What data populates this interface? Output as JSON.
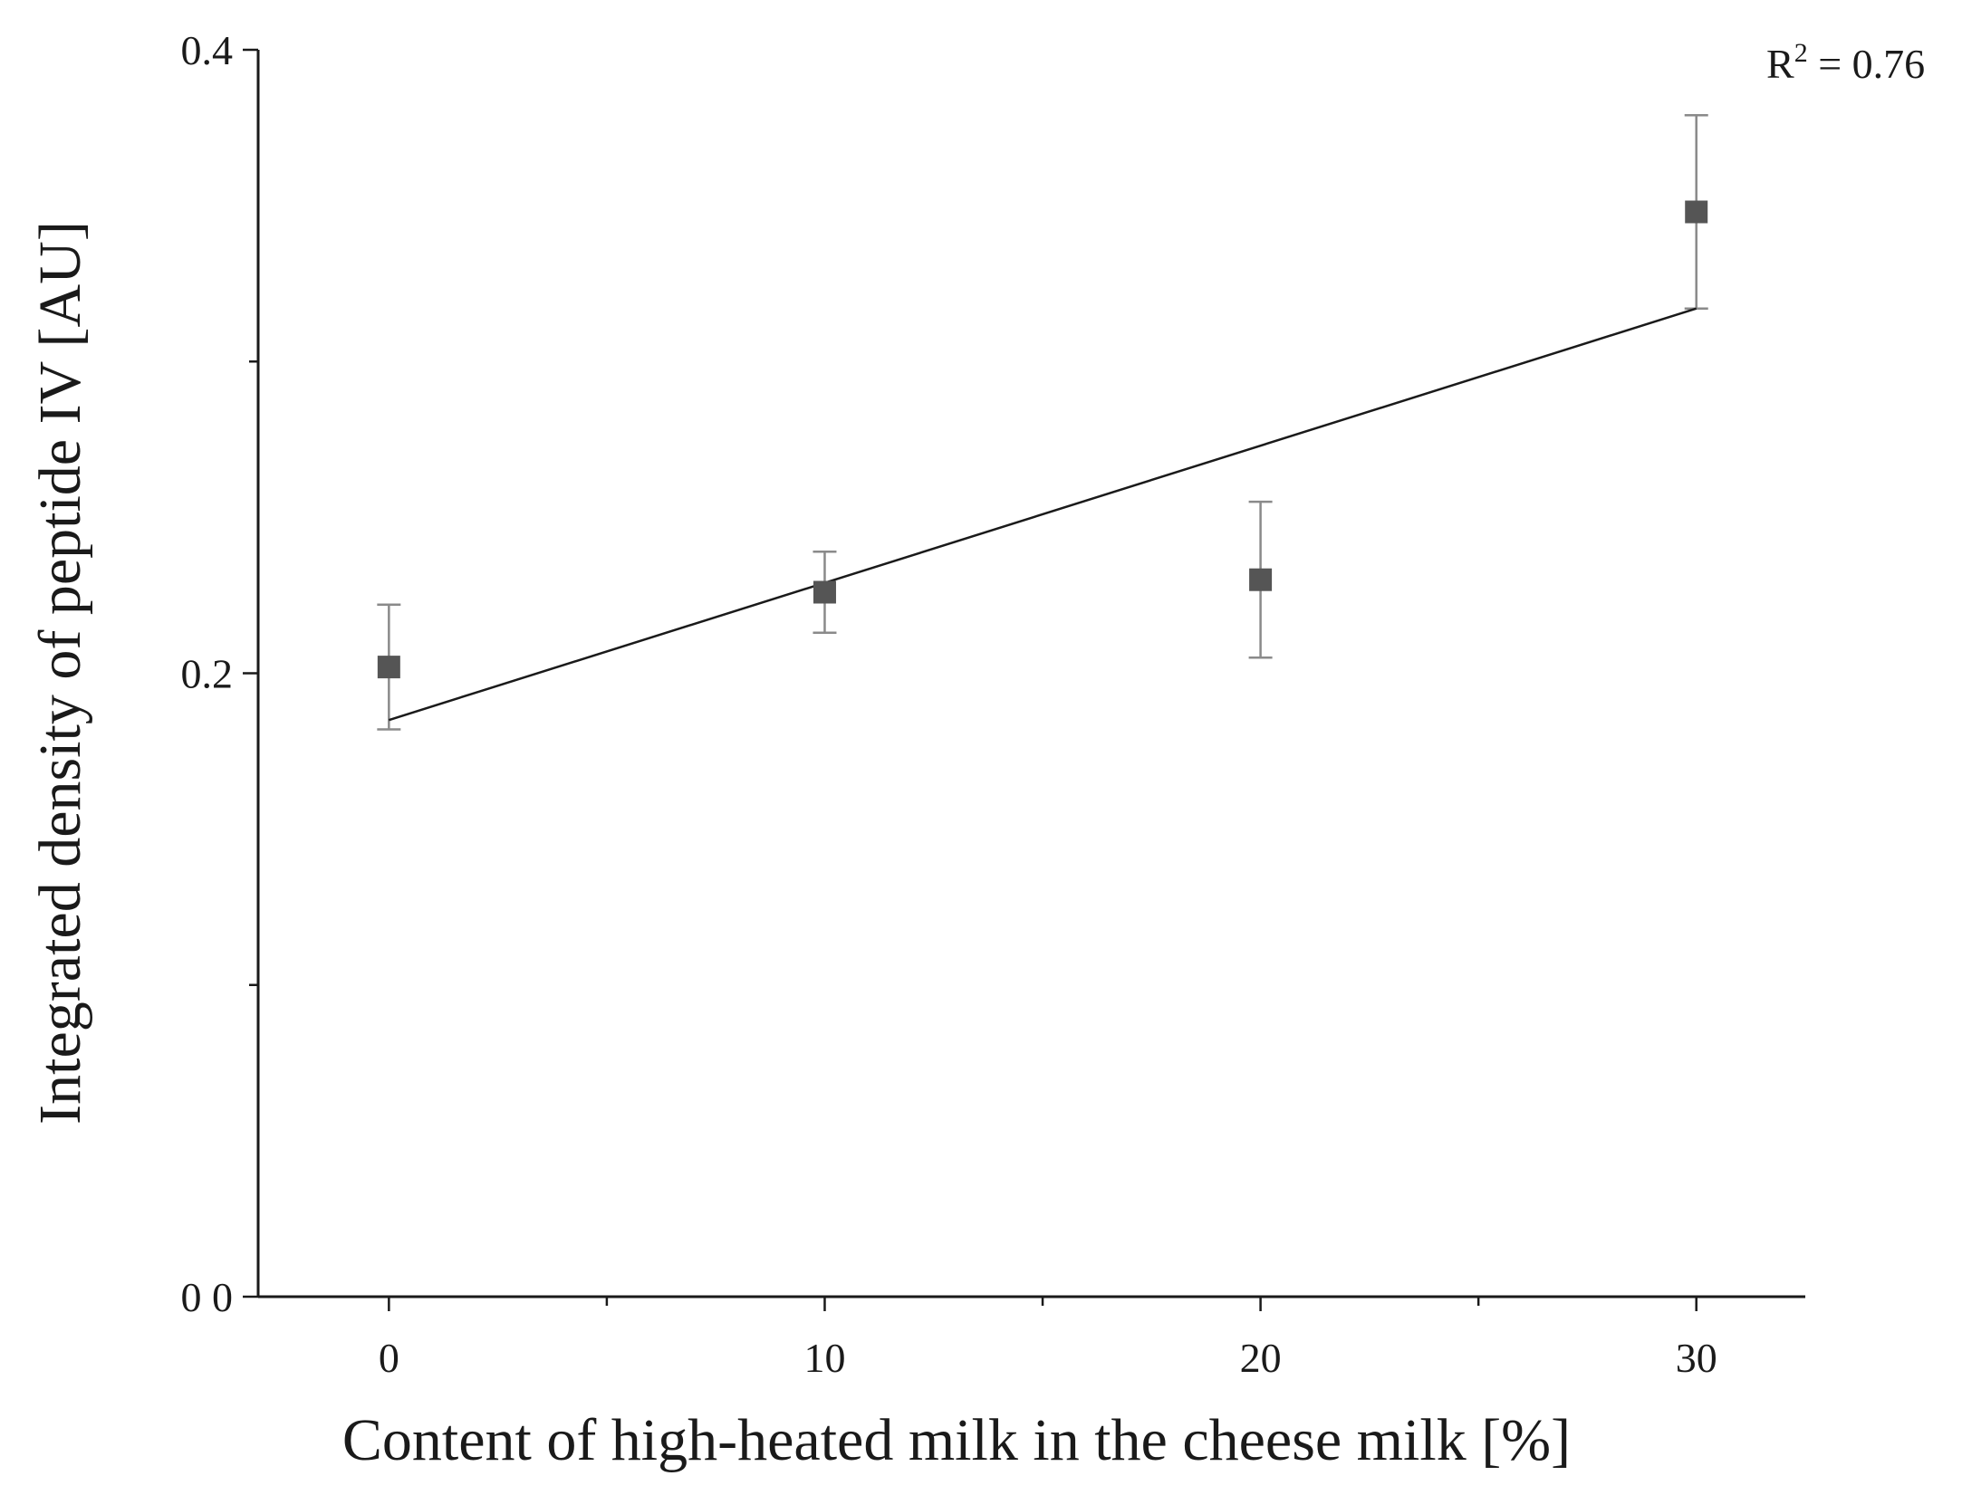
{
  "chart_data": {
    "type": "scatter",
    "xlabel": "Content of high-heated milk in the cheese milk [%]",
    "ylabel": "Integrated density of peptide IV [AU]",
    "xlim": [
      -3,
      32.5
    ],
    "ylim": [
      0,
      0.4
    ],
    "x_ticks": [
      0,
      10,
      20,
      30
    ],
    "x_minor_ticks": [
      5,
      15,
      25
    ],
    "x_tick_labels": [
      "0",
      "10",
      "20",
      "30"
    ],
    "y_ticks": [
      0,
      0.2,
      0.4
    ],
    "y_minor_ticks": [
      0.1,
      0.3
    ],
    "y_tick_labels": [
      "0 0",
      "0.2",
      "0.4"
    ],
    "points": [
      {
        "x": 0,
        "y": 0.202,
        "err_low": 0.182,
        "err_high": 0.222
      },
      {
        "x": 10,
        "y": 0.226,
        "err_low": 0.213,
        "err_high": 0.239
      },
      {
        "x": 20,
        "y": 0.23,
        "err_low": 0.205,
        "err_high": 0.255
      },
      {
        "x": 30,
        "y": 0.348,
        "err_low": 0.317,
        "err_high": 0.379
      }
    ],
    "fit_line": {
      "x": [
        0,
        30
      ],
      "y": [
        0.185,
        0.317
      ]
    },
    "annotation": {
      "base": "R",
      "sup": "2",
      "rest": " = 0.76"
    },
    "marker_color": "#555555",
    "errorbar_color": "#8a8a8a",
    "line_color": "#1a1a1a",
    "grid": false,
    "legend": "none"
  }
}
